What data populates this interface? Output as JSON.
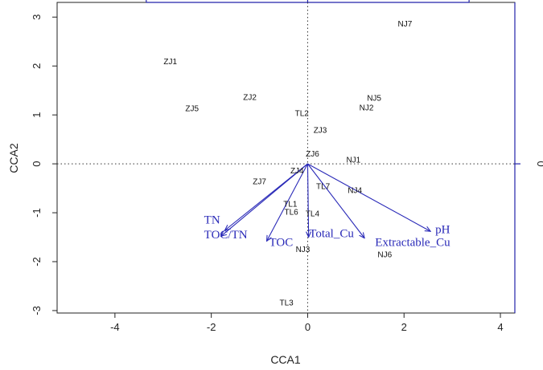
{
  "chart_data": {
    "type": "scatter",
    "title": "",
    "xlabel": "CCA1",
    "ylabel": "CCA2",
    "xlim": [
      -5.2,
      4.3
    ],
    "ylim": [
      -3.05,
      3.3
    ],
    "x_ticks": [
      -4,
      -2,
      0,
      2,
      4
    ],
    "y_ticks": [
      -3,
      -2,
      -1,
      0,
      1,
      2,
      3
    ],
    "x_tick_labels": [
      "-4",
      "-2",
      "0",
      "2",
      "4"
    ],
    "y_tick_labels": [
      "-3",
      "-2",
      "-1",
      "0",
      "1",
      "2",
      "3"
    ],
    "right_axis": {
      "ticks": [
        0
      ],
      "tick_labels": [
        "0"
      ],
      "color": "#2222aa"
    },
    "top_axis": {
      "color": "#2222aa",
      "range": [
        -3.35,
        3.35
      ]
    },
    "reference_lines": {
      "x": 0,
      "y": 0,
      "style": "dotted"
    },
    "sites": [
      {
        "label": "NJ7",
        "x": 2.02,
        "y": 2.85
      },
      {
        "label": "ZJ1",
        "x": -2.85,
        "y": 2.08
      },
      {
        "label": "ZJ2",
        "x": -1.2,
        "y": 1.35
      },
      {
        "label": "NJ5",
        "x": 1.38,
        "y": 1.33
      },
      {
        "label": "NJ2",
        "x": 1.22,
        "y": 1.14
      },
      {
        "label": "ZJ5",
        "x": -2.4,
        "y": 1.12
      },
      {
        "label": "TL2",
        "x": -0.12,
        "y": 1.02
      },
      {
        "label": "ZJ3",
        "x": 0.26,
        "y": 0.68
      },
      {
        "label": "ZJ6",
        "x": 0.1,
        "y": 0.19
      },
      {
        "label": "NJ1",
        "x": 0.95,
        "y": 0.07
      },
      {
        "label": "ZJ4",
        "x": -0.22,
        "y": -0.15
      },
      {
        "label": "ZJ7",
        "x": -1.0,
        "y": -0.37
      },
      {
        "label": "TL7",
        "x": 0.32,
        "y": -0.47
      },
      {
        "label": "NJ4",
        "x": 0.98,
        "y": -0.55
      },
      {
        "label": "TL1",
        "x": -0.36,
        "y": -0.83
      },
      {
        "label": "TL6",
        "x": -0.34,
        "y": -1.0
      },
      {
        "label": "TL4",
        "x": 0.1,
        "y": -1.03
      },
      {
        "label": "NJ3",
        "x": -0.1,
        "y": -1.76
      },
      {
        "label": "NJ6",
        "x": 1.6,
        "y": -1.87
      },
      {
        "label": "TL3",
        "x": -0.44,
        "y": -2.85
      }
    ],
    "env_vectors": [
      {
        "label": "TN",
        "x": -1.72,
        "y": -1.36,
        "label_x": -2.15,
        "label_y": -1.22
      },
      {
        "label": "TOC/TN",
        "x": -1.8,
        "y": -1.48,
        "label_x": -2.15,
        "label_y": -1.52
      },
      {
        "label": "TOC",
        "x": -0.85,
        "y": -1.58,
        "label_x": -0.8,
        "label_y": -1.68
      },
      {
        "label": "Total_Cu",
        "x": 0.02,
        "y": -1.5,
        "label_x": 0.03,
        "label_y": -1.5
      },
      {
        "label": "Extractable_Cu",
        "x": 1.18,
        "y": -1.52,
        "label_x": 1.4,
        "label_y": -1.68
      },
      {
        "label": "pH",
        "x": 2.55,
        "y": -1.38,
        "label_x": 2.65,
        "label_y": -1.42
      }
    ],
    "colors": {
      "vector": "#2a2ab8",
      "points": "#111111",
      "frame": "#222222",
      "secondary_axis": "#2222aa"
    }
  }
}
